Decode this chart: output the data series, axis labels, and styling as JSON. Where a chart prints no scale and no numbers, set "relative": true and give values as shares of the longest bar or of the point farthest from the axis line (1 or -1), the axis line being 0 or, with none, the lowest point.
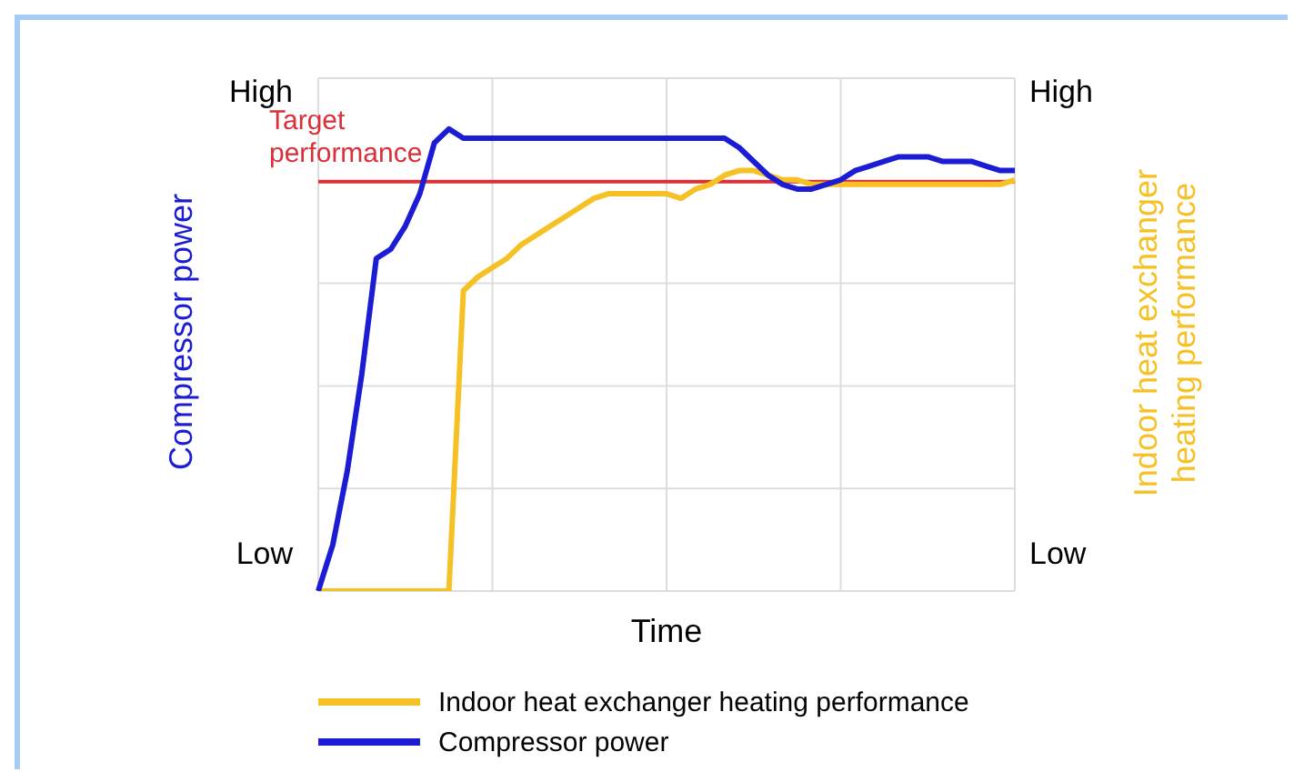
{
  "chart_data": {
    "type": "line",
    "relative": true,
    "xlabel": "Time",
    "ylabel": "Compressor power",
    "y2label": "Indoor heat exchanger heating performance",
    "categories": [
      null,
      null,
      null,
      null,
      null,
      null,
      null,
      null,
      null,
      null,
      null,
      null,
      null,
      null,
      null,
      null,
      null,
      null,
      null,
      null,
      null,
      null,
      null,
      null,
      null,
      null,
      null,
      null,
      null,
      null,
      null,
      null,
      null,
      null,
      null,
      null,
      null,
      null,
      null,
      null,
      null,
      null,
      null,
      null,
      null,
      null,
      null,
      null,
      null
    ],
    "series": [
      {
        "name": "Indoor heat exchanger heating performance",
        "color": "#f5c125",
        "values": [
          0,
          0,
          0,
          0,
          0,
          0,
          0,
          0,
          0,
          0,
          0.65,
          0.68,
          0.7,
          0.72,
          0.75,
          0.77,
          0.79,
          0.81,
          0.83,
          0.85,
          0.86,
          0.86,
          0.86,
          0.86,
          0.86,
          0.85,
          0.87,
          0.88,
          0.9,
          0.91,
          0.91,
          0.9,
          0.89,
          0.89,
          0.88,
          0.88,
          0.88,
          0.88,
          0.88,
          0.88,
          0.88,
          0.88,
          0.88,
          0.88,
          0.88,
          0.88,
          0.88,
          0.88,
          0.89
        ]
      },
      {
        "name": "Compressor power",
        "color": "#1c1cd4",
        "values": [
          0,
          0.1,
          0.26,
          0.47,
          0.72,
          0.74,
          0.79,
          0.86,
          0.97,
          1,
          0.98,
          0.98,
          0.98,
          0.98,
          0.98,
          0.98,
          0.98,
          0.98,
          0.98,
          0.98,
          0.98,
          0.98,
          0.98,
          0.98,
          0.98,
          0.98,
          0.98,
          0.98,
          0.98,
          0.96,
          0.93,
          0.9,
          0.88,
          0.87,
          0.87,
          0.88,
          0.89,
          0.91,
          0.92,
          0.93,
          0.94,
          0.94,
          0.94,
          0.93,
          0.93,
          0.93,
          0.92,
          0.91,
          0.91
        ]
      }
    ],
    "ref_lines": [
      {
        "axis": "y",
        "value": 0.886,
        "label": "Target\nperformance",
        "color": "#d9303a"
      }
    ],
    "annotations": [
      "High",
      "Low",
      "High",
      "Low"
    ],
    "grid": true,
    "legend": "bottom",
    "marker": "none",
    "line_style": "solid"
  }
}
